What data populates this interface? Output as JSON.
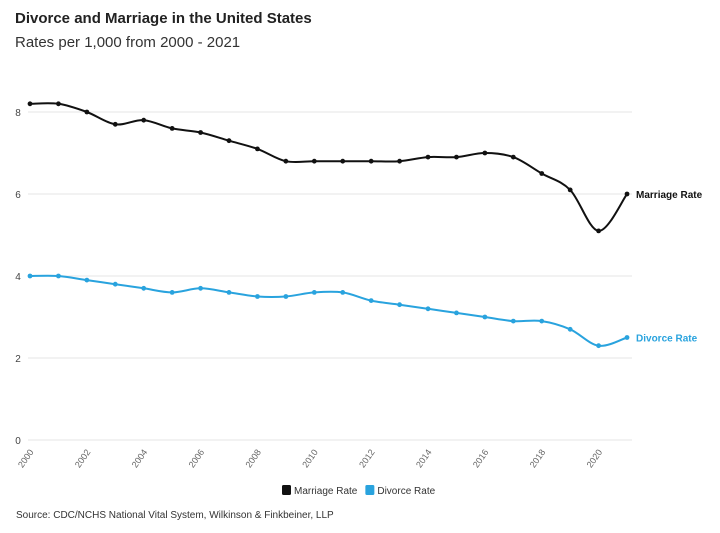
{
  "chart_data": {
    "type": "line",
    "title": "Divorce and Marriage in the United States",
    "subtitle": "Rates per 1,000 from 2000 - 2021",
    "source": "Source: CDC/NCHS National Vital System, Wilkinson & Finkbeiner, LLP",
    "x": [
      2000,
      2001,
      2002,
      2003,
      2004,
      2005,
      2006,
      2007,
      2008,
      2009,
      2010,
      2011,
      2012,
      2013,
      2014,
      2015,
      2016,
      2017,
      2018,
      2019,
      2020,
      2021
    ],
    "x_ticks": [
      "2000",
      "2002",
      "2004",
      "2006",
      "2008",
      "2010",
      "2012",
      "2014",
      "2016",
      "2018",
      "2020"
    ],
    "y_ticks": [
      "0",
      "2",
      "4",
      "6",
      "8"
    ],
    "ylim": [
      0,
      9
    ],
    "grid": true,
    "legend_position": "bottom",
    "series": [
      {
        "name": "Marriage Rate",
        "color": "#111111",
        "values": [
          8.2,
          8.2,
          8.0,
          7.7,
          7.8,
          7.6,
          7.5,
          7.3,
          7.1,
          6.8,
          6.8,
          6.8,
          6.8,
          6.8,
          6.9,
          6.9,
          7.0,
          6.9,
          6.5,
          6.1,
          5.1,
          6.0
        ]
      },
      {
        "name": "Divorce Rate",
        "color": "#29a3de",
        "values": [
          4.0,
          4.0,
          3.9,
          3.8,
          3.7,
          3.6,
          3.7,
          3.6,
          3.5,
          3.5,
          3.6,
          3.6,
          3.4,
          3.3,
          3.2,
          3.1,
          3.0,
          2.9,
          2.9,
          2.7,
          2.3,
          2.5
        ]
      }
    ]
  }
}
